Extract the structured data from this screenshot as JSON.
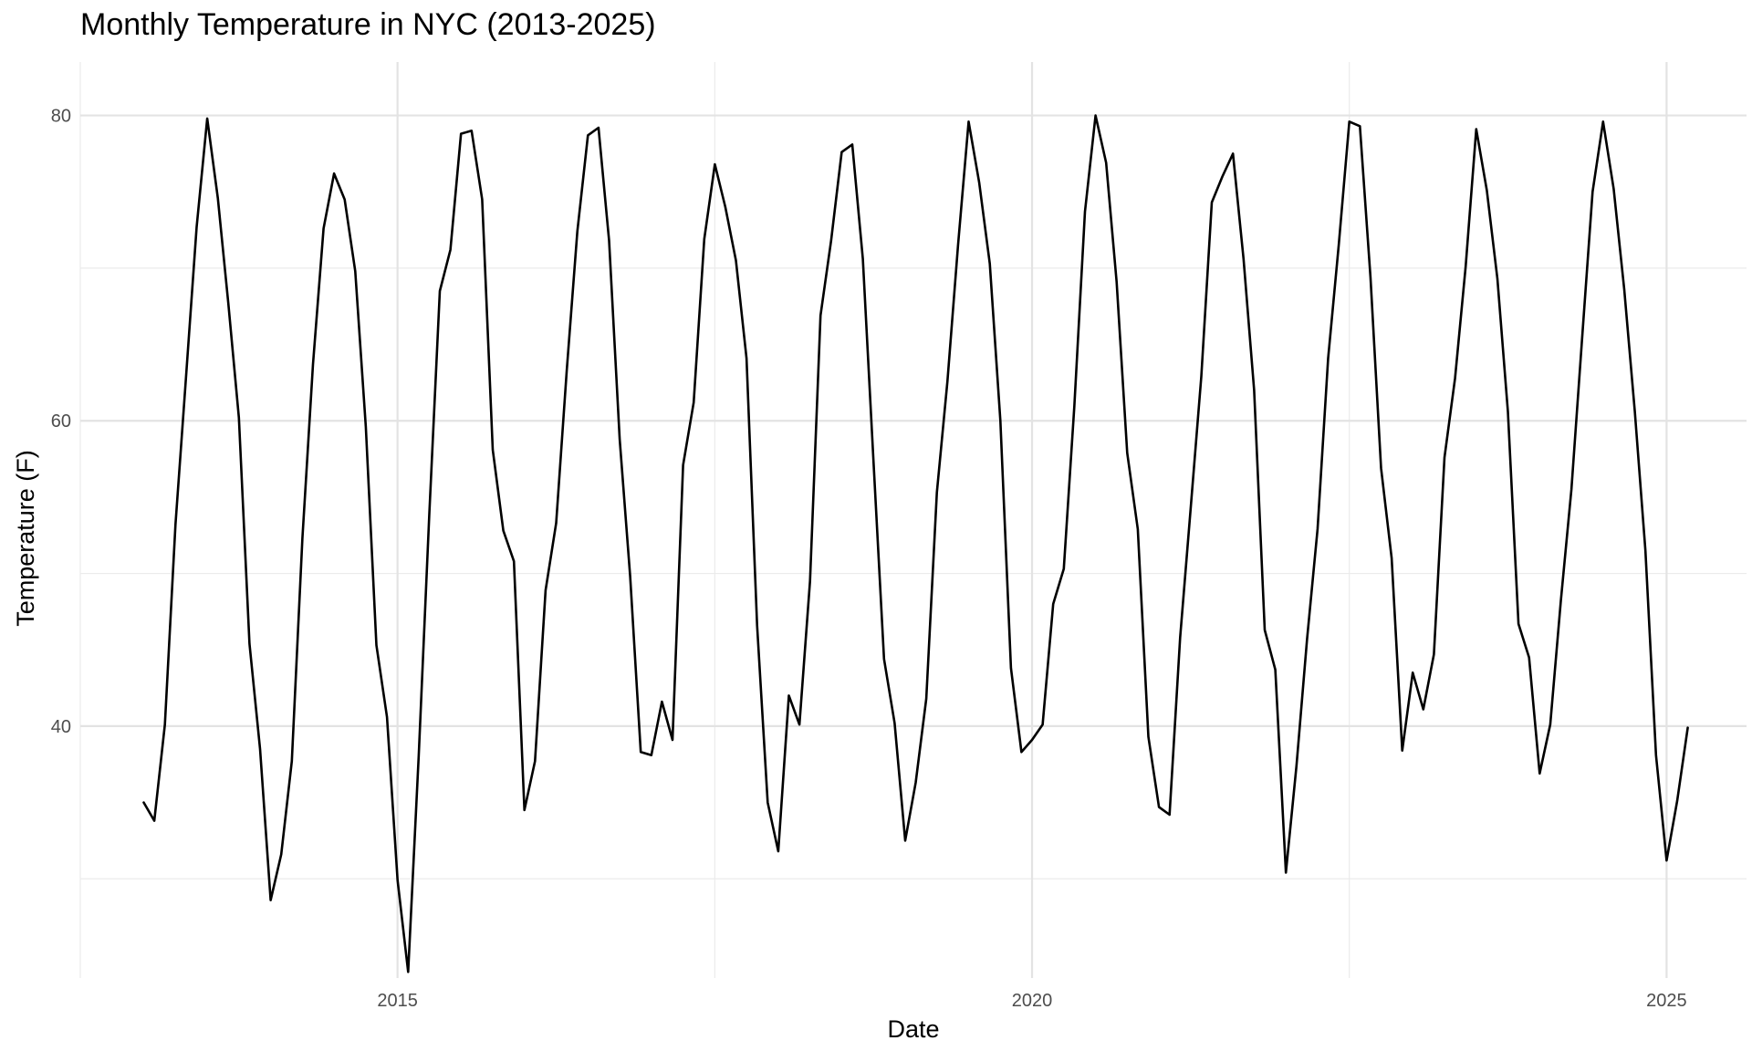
{
  "chart_data": {
    "type": "line",
    "title": "Monthly Temperature in NYC (2013-2025)",
    "xlabel": "Date",
    "ylabel": "Temperature (F)",
    "xlim": [
      2012.5,
      2025.63
    ],
    "ylim": [
      23.5,
      83.5
    ],
    "x_ticks": [
      {
        "value": 2015,
        "label": "2015"
      },
      {
        "value": 2020,
        "label": "2020"
      },
      {
        "value": 2025,
        "label": "2025"
      }
    ],
    "y_ticks": [
      {
        "value": 40,
        "label": "40"
      },
      {
        "value": 60,
        "label": "60"
      },
      {
        "value": 80,
        "label": "80"
      }
    ],
    "y_minor": [
      30,
      50,
      70
    ],
    "grid": true,
    "line_color": "#000000",
    "series": [
      {
        "start_year": 2013,
        "start_month": 1,
        "values": [
          35.0,
          33.8,
          40.1,
          53.2,
          62.9,
          72.7,
          79.8,
          74.6,
          67.7,
          60.2,
          45.4,
          38.5,
          28.6,
          31.6,
          37.7,
          52.3,
          63.7,
          72.6,
          76.2,
          74.5,
          69.8,
          59.6,
          45.3,
          40.6,
          29.9,
          23.9,
          38.1,
          53.8,
          68.5,
          71.2,
          78.8,
          79.0,
          74.5,
          58.1,
          52.8,
          50.8,
          34.5,
          37.7,
          48.9,
          53.3,
          63.3,
          72.4,
          78.7,
          79.2,
          71.8,
          58.8,
          49.8,
          38.3,
          38.1,
          41.6,
          39.1,
          57.1,
          61.2,
          71.9,
          76.8,
          74.0,
          70.5,
          64.1,
          46.6,
          35.0,
          31.8,
          42.0,
          40.1,
          49.5,
          66.9,
          71.8,
          77.6,
          78.1,
          70.6,
          57.4,
          44.4,
          40.2,
          32.5,
          36.3,
          41.8,
          55.3,
          62.6,
          71.5,
          79.6,
          75.6,
          70.3,
          60.0,
          43.8,
          38.3,
          39.1,
          40.1,
          48.0,
          50.3,
          61.0,
          73.7,
          80.0,
          76.9,
          69.1,
          57.9,
          52.9,
          39.3,
          34.7,
          34.2,
          45.8,
          54.3,
          62.9,
          74.3,
          76.0,
          77.5,
          70.6,
          62.0,
          46.3,
          43.7,
          30.4,
          37.4,
          45.7,
          52.9,
          64.1,
          71.5,
          79.6,
          79.3,
          69.4,
          56.9,
          51.0,
          38.4,
          43.5,
          41.1,
          44.7,
          57.6,
          62.8,
          70.1,
          79.1,
          75.1,
          69.3,
          60.6,
          46.7,
          44.5,
          36.9,
          40.1,
          48.2,
          55.5,
          65.3,
          75.0,
          79.6,
          75.2,
          68.6,
          60.6,
          51.5,
          38.1,
          31.2,
          35.1,
          39.9
        ]
      }
    ]
  }
}
